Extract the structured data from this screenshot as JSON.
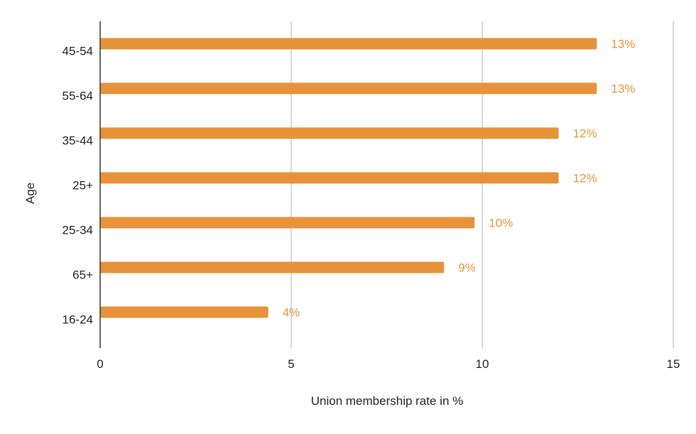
{
  "chart_data": {
    "type": "bar",
    "orientation": "horizontal",
    "title": "",
    "xlabel": "Union membership rate in %",
    "ylabel": "Age",
    "categories": [
      "45-54",
      "55-64",
      "35-44",
      "25+",
      "25-34",
      "65+",
      "16-24"
    ],
    "values": [
      13.0,
      13.0,
      12.0,
      12.0,
      9.8,
      9.0,
      4.4
    ],
    "data_labels": [
      "13%",
      "13%",
      "12%",
      "12%",
      "10%",
      "9%",
      "4%"
    ],
    "xlim": [
      0,
      15
    ],
    "xticks": [
      0,
      5,
      10,
      15
    ],
    "grid": true,
    "legend": "none",
    "colors": {
      "bar": "#E8923A",
      "label": "#E8923A",
      "grid": "#CCCCCC",
      "axis": "#333333"
    }
  }
}
